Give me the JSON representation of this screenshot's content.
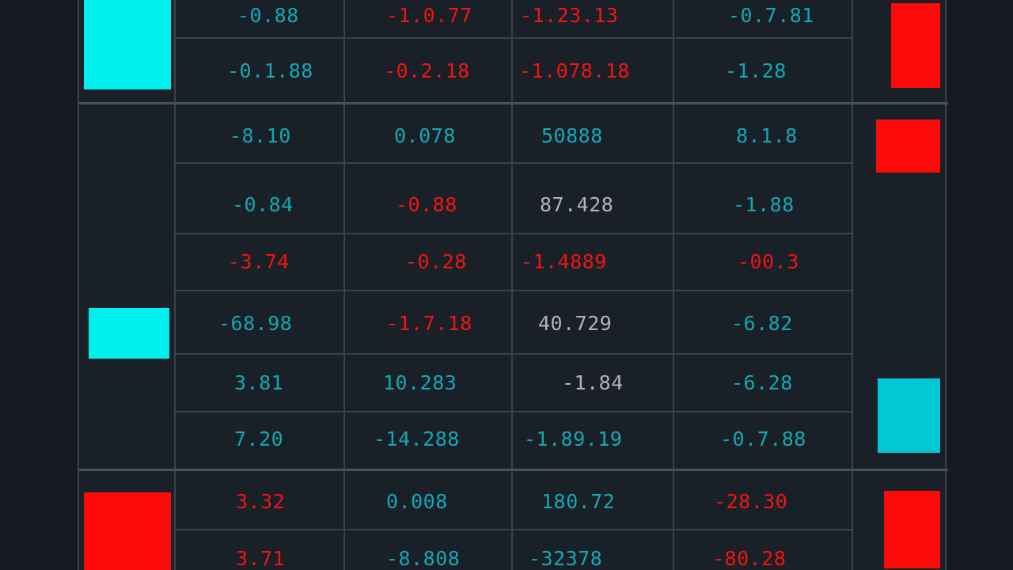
{
  "colors": {
    "positive": "#13a8b4",
    "negative": "#f01414",
    "neutral": "#b0b4b8",
    "marker_cyan": "#00f0f0",
    "marker_teal": "#00c8d4",
    "marker_red": "#ff0a0a"
  },
  "grid": {
    "rows": [
      {
        "cells": [
          {
            "text": "-0.88",
            "tone": "teal"
          },
          {
            "text": "-1.0.77",
            "tone": "red"
          },
          {
            "text": "-1.23.13",
            "tone": "red"
          },
          {
            "text": "-0.7.81",
            "tone": "teal"
          }
        ]
      },
      {
        "cells": [
          {
            "text": "-0.1.88",
            "tone": "teal"
          },
          {
            "text": "-0.2.18",
            "tone": "red"
          },
          {
            "text": "-1.078.18",
            "tone": "red"
          },
          {
            "text": "-1.28",
            "tone": "teal"
          }
        ]
      },
      {
        "cells": [
          {
            "text": "-8.10",
            "tone": "teal"
          },
          {
            "text": "0.078",
            "tone": "teal"
          },
          {
            "text": "50888",
            "tone": "teal"
          },
          {
            "text": "8.1.8",
            "tone": "teal"
          }
        ]
      },
      {
        "cells": [
          {
            "text": "-0.84",
            "tone": "teal"
          },
          {
            "text": "-0.88",
            "tone": "red"
          },
          {
            "text": "87.428",
            "tone": "gray"
          },
          {
            "text": "-1.88",
            "tone": "teal"
          }
        ]
      },
      {
        "cells": [
          {
            "text": "-3.74",
            "tone": "red"
          },
          {
            "text": "-0.28",
            "tone": "red"
          },
          {
            "text": "-1.4889",
            "tone": "red"
          },
          {
            "text": "-00.3",
            "tone": "red"
          }
        ]
      },
      {
        "cells": [
          {
            "text": "-68.98",
            "tone": "teal"
          },
          {
            "text": "-1.7.18",
            "tone": "red"
          },
          {
            "text": "40.729",
            "tone": "gray"
          },
          {
            "text": "-6.82",
            "tone": "teal"
          }
        ]
      },
      {
        "cells": [
          {
            "text": "3.81",
            "tone": "teal"
          },
          {
            "text": "10.283",
            "tone": "teal"
          },
          {
            "text": "-1.84",
            "tone": "gray"
          },
          {
            "text": "-6.28",
            "tone": "teal"
          }
        ]
      },
      {
        "cells": [
          {
            "text": "7.20",
            "tone": "teal"
          },
          {
            "text": "-14.288",
            "tone": "teal"
          },
          {
            "text": "-1.89.19",
            "tone": "teal"
          },
          {
            "text": "-0.7.88",
            "tone": "teal"
          }
        ]
      },
      {
        "cells": [
          {
            "text": "3.32",
            "tone": "red"
          },
          {
            "text": "0.008",
            "tone": "teal"
          },
          {
            "text": "180.72",
            "tone": "teal"
          },
          {
            "text": "-28.30",
            "tone": "red"
          }
        ]
      },
      {
        "cells": [
          {
            "text": "3.71",
            "tone": "red"
          },
          {
            "text": "-8.808",
            "tone": "teal"
          },
          {
            "text": "-32378",
            "tone": "teal"
          },
          {
            "text": "-80.28",
            "tone": "red"
          }
        ]
      }
    ]
  },
  "markers": {
    "left": [
      {
        "color": "#00f0f0"
      },
      {
        "color": "#00f0f0"
      },
      {
        "color": "#ff0a0a"
      }
    ],
    "right": [
      {
        "color": "#ff0a0a"
      },
      {
        "color": "#ff0a0a"
      },
      {
        "color": "#00c8d4"
      },
      {
        "color": "#ff0a0a"
      }
    ]
  }
}
